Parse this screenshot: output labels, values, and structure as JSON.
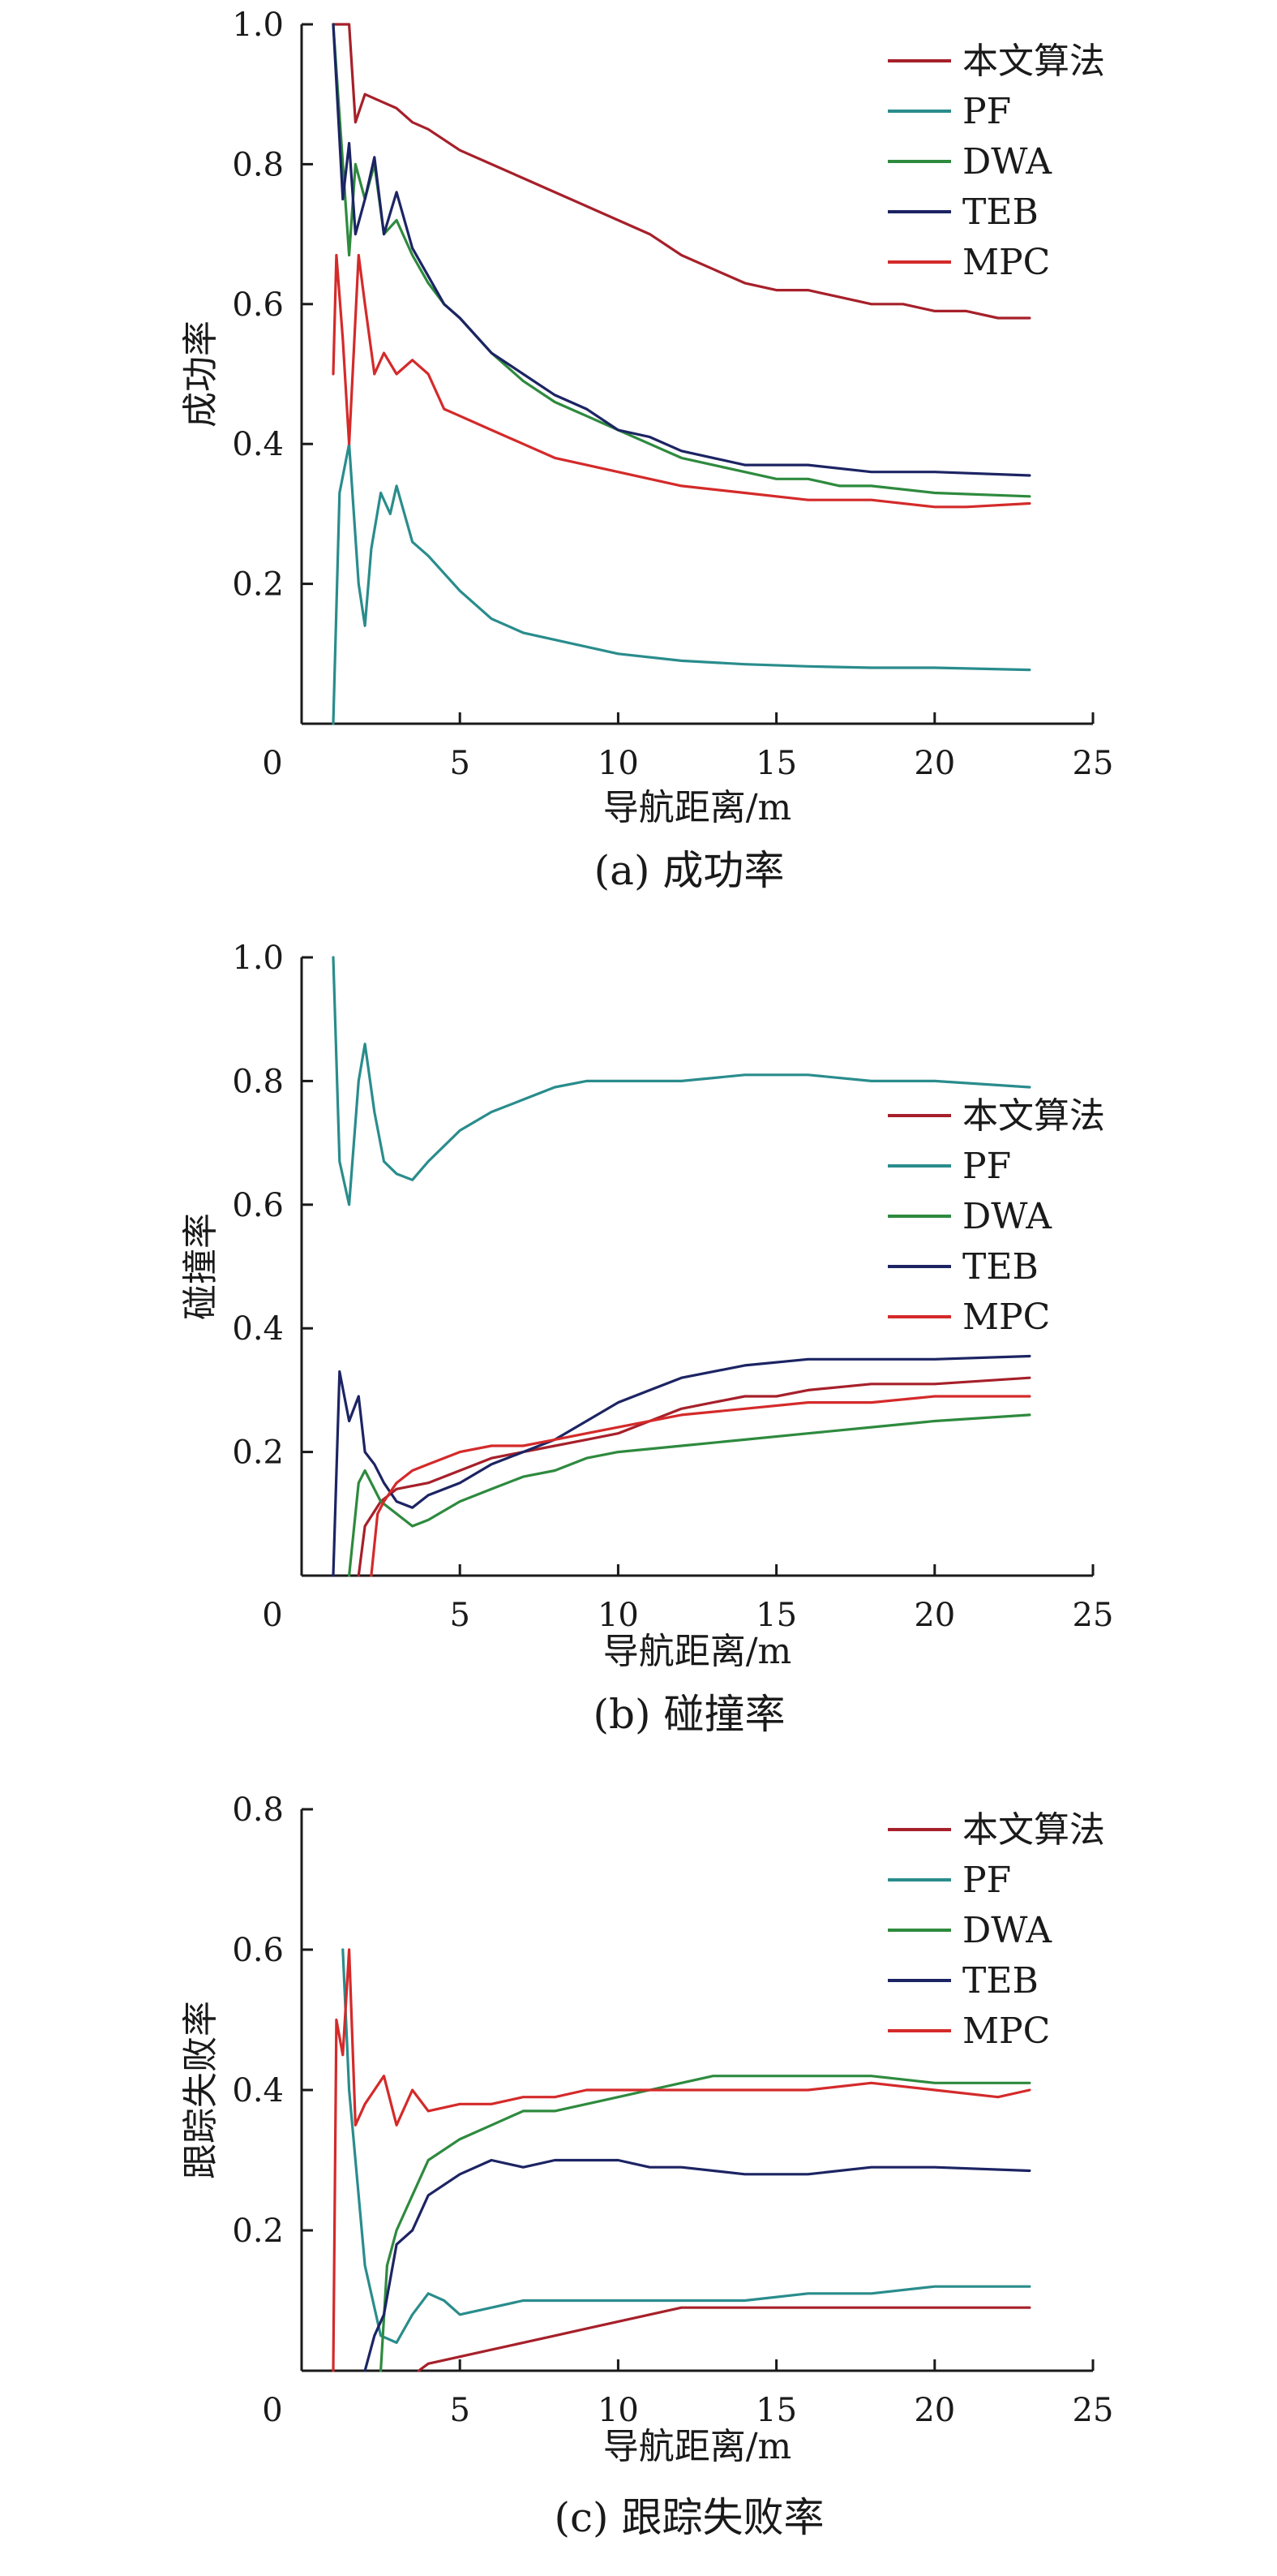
{
  "chart_data": [
    {
      "type": "line",
      "caption": "(a) 成功率",
      "xlabel": "导航距离/m",
      "ylabel": "成功率",
      "xlim": [
        0,
        25
      ],
      "ylim": [
        0,
        1.0
      ],
      "xticks": [
        0,
        5,
        10,
        15,
        20,
        25
      ],
      "yticks": [
        0.2,
        0.4,
        0.6,
        0.8,
        1.0
      ],
      "ytick_labels": [
        "0.2",
        "0.4",
        "0.6",
        "0.8",
        "1.0"
      ],
      "legend": "top-right",
      "series": [
        {
          "name": "本文算法",
          "color": "#a6202a",
          "x": [
            1.0,
            1.5,
            1.7,
            2.0,
            2.5,
            3.0,
            3.5,
            4.0,
            5.0,
            6.0,
            7.0,
            8.0,
            9.0,
            10.0,
            11.0,
            12.0,
            13.0,
            14.0,
            15.0,
            16.0,
            17.0,
            18.0,
            19.0,
            20.0,
            21.0,
            22.0,
            23.0
          ],
          "y": [
            1.0,
            1.0,
            0.86,
            0.9,
            0.89,
            0.88,
            0.86,
            0.85,
            0.82,
            0.8,
            0.78,
            0.76,
            0.74,
            0.72,
            0.7,
            0.67,
            0.65,
            0.63,
            0.62,
            0.62,
            0.61,
            0.6,
            0.6,
            0.59,
            0.59,
            0.58,
            0.58
          ]
        },
        {
          "name": "PF",
          "color": "#2a8c8c",
          "x": [
            1.0,
            1.2,
            1.5,
            1.8,
            2.0,
            2.2,
            2.5,
            2.8,
            3.0,
            3.5,
            4.0,
            5.0,
            6.0,
            7.0,
            8.0,
            9.0,
            10.0,
            12.0,
            14.0,
            16.0,
            18.0,
            20.0,
            23.0
          ],
          "y": [
            0.0,
            0.33,
            0.4,
            0.2,
            0.14,
            0.25,
            0.33,
            0.3,
            0.34,
            0.26,
            0.24,
            0.19,
            0.15,
            0.13,
            0.12,
            0.11,
            0.1,
            0.09,
            0.085,
            0.082,
            0.08,
            0.08,
            0.077
          ]
        },
        {
          "name": "DWA",
          "color": "#2e8a3e",
          "x": [
            1.0,
            1.5,
            1.7,
            2.0,
            2.3,
            2.6,
            3.0,
            3.5,
            4.0,
            4.5,
            5.0,
            6.0,
            7.0,
            8.0,
            9.0,
            10.0,
            11.0,
            12.0,
            13.0,
            14.0,
            15.0,
            16.0,
            17.0,
            18.0,
            20.0,
            23.0
          ],
          "y": [
            1.0,
            0.67,
            0.8,
            0.75,
            0.8,
            0.7,
            0.72,
            0.67,
            0.63,
            0.6,
            0.58,
            0.53,
            0.49,
            0.46,
            0.44,
            0.42,
            0.4,
            0.38,
            0.37,
            0.36,
            0.35,
            0.35,
            0.34,
            0.34,
            0.33,
            0.325
          ]
        },
        {
          "name": "TEB",
          "color": "#1c2463",
          "x": [
            1.0,
            1.3,
            1.5,
            1.7,
            2.0,
            2.3,
            2.6,
            3.0,
            3.5,
            4.0,
            4.5,
            5.0,
            6.0,
            7.0,
            8.0,
            9.0,
            10.0,
            11.0,
            12.0,
            13.0,
            14.0,
            15.0,
            16.0,
            18.0,
            20.0,
            23.0
          ],
          "y": [
            1.0,
            0.75,
            0.83,
            0.7,
            0.75,
            0.81,
            0.7,
            0.76,
            0.68,
            0.64,
            0.6,
            0.58,
            0.53,
            0.5,
            0.47,
            0.45,
            0.42,
            0.41,
            0.39,
            0.38,
            0.37,
            0.37,
            0.37,
            0.36,
            0.36,
            0.355
          ]
        },
        {
          "name": "MPC",
          "color": "#d42a2a",
          "x": [
            1.0,
            1.1,
            1.3,
            1.5,
            1.8,
            2.0,
            2.3,
            2.6,
            3.0,
            3.5,
            4.0,
            4.5,
            5.0,
            6.0,
            7.0,
            8.0,
            9.0,
            10.0,
            11.0,
            12.0,
            14.0,
            16.0,
            18.0,
            20.0,
            21.0,
            23.0
          ],
          "y": [
            0.5,
            0.67,
            0.55,
            0.4,
            0.67,
            0.6,
            0.5,
            0.53,
            0.5,
            0.52,
            0.5,
            0.45,
            0.44,
            0.42,
            0.4,
            0.38,
            0.37,
            0.36,
            0.35,
            0.34,
            0.33,
            0.32,
            0.32,
            0.31,
            0.31,
            0.315
          ]
        }
      ]
    },
    {
      "type": "line",
      "caption": "(b) 碰撞率",
      "xlabel": "导航距离/m",
      "ylabel": "碰撞率",
      "xlim": [
        0,
        25
      ],
      "ylim": [
        0,
        1.0
      ],
      "xticks": [
        0,
        5,
        10,
        15,
        20,
        25
      ],
      "yticks": [
        0.2,
        0.4,
        0.6,
        0.8,
        1.0
      ],
      "ytick_labels": [
        "0.2",
        "0.4",
        "0.6",
        "0.8",
        "1.0"
      ],
      "legend": "right",
      "series": [
        {
          "name": "本文算法",
          "color": "#a6202a",
          "x": [
            1.8,
            2.0,
            2.5,
            3.0,
            4.0,
            5.0,
            6.0,
            7.0,
            8.0,
            9.0,
            10.0,
            11.0,
            12.0,
            13.0,
            14.0,
            15.0,
            16.0,
            18.0,
            20.0,
            23.0
          ],
          "y": [
            0.0,
            0.08,
            0.12,
            0.14,
            0.15,
            0.17,
            0.19,
            0.2,
            0.21,
            0.22,
            0.23,
            0.25,
            0.27,
            0.28,
            0.29,
            0.29,
            0.3,
            0.31,
            0.31,
            0.32
          ]
        },
        {
          "name": "PF",
          "color": "#2a8c8c",
          "x": [
            1.0,
            1.2,
            1.5,
            1.8,
            2.0,
            2.3,
            2.6,
            3.0,
            3.5,
            4.0,
            5.0,
            6.0,
            7.0,
            8.0,
            9.0,
            10.0,
            12.0,
            14.0,
            16.0,
            18.0,
            20.0,
            23.0
          ],
          "y": [
            1.0,
            0.67,
            0.6,
            0.8,
            0.86,
            0.75,
            0.67,
            0.65,
            0.64,
            0.67,
            0.72,
            0.75,
            0.77,
            0.79,
            0.8,
            0.8,
            0.8,
            0.81,
            0.81,
            0.8,
            0.8,
            0.79
          ]
        },
        {
          "name": "DWA",
          "color": "#2e8a3e",
          "x": [
            1.5,
            1.8,
            2.0,
            2.5,
            3.0,
            3.5,
            4.0,
            5.0,
            6.0,
            7.0,
            8.0,
            9.0,
            10.0,
            12.0,
            14.0,
            16.0,
            18.0,
            20.0,
            23.0
          ],
          "y": [
            0.0,
            0.15,
            0.17,
            0.12,
            0.1,
            0.08,
            0.09,
            0.12,
            0.14,
            0.16,
            0.17,
            0.19,
            0.2,
            0.21,
            0.22,
            0.23,
            0.24,
            0.25,
            0.26
          ]
        },
        {
          "name": "TEB",
          "color": "#1c2463",
          "x": [
            1.0,
            1.2,
            1.5,
            1.8,
            2.0,
            2.3,
            2.6,
            3.0,
            3.5,
            4.0,
            5.0,
            6.0,
            7.0,
            8.0,
            9.0,
            10.0,
            11.0,
            12.0,
            14.0,
            16.0,
            18.0,
            20.0,
            23.0
          ],
          "y": [
            0.0,
            0.33,
            0.25,
            0.29,
            0.2,
            0.18,
            0.15,
            0.12,
            0.11,
            0.13,
            0.15,
            0.18,
            0.2,
            0.22,
            0.25,
            0.28,
            0.3,
            0.32,
            0.34,
            0.35,
            0.35,
            0.35,
            0.355
          ]
        },
        {
          "name": "MPC",
          "color": "#d42a2a",
          "x": [
            2.2,
            2.4,
            2.6,
            3.0,
            3.5,
            4.0,
            5.0,
            6.0,
            7.0,
            8.0,
            9.0,
            10.0,
            12.0,
            14.0,
            16.0,
            18.0,
            20.0,
            23.0
          ],
          "y": [
            0.0,
            0.1,
            0.12,
            0.15,
            0.17,
            0.18,
            0.2,
            0.21,
            0.21,
            0.22,
            0.23,
            0.24,
            0.26,
            0.27,
            0.28,
            0.28,
            0.29,
            0.29
          ]
        }
      ]
    },
    {
      "type": "line",
      "caption": "(c) 跟踪失败率",
      "xlabel": "导航距离/m",
      "ylabel": "跟踪失败率",
      "xlim": [
        0,
        25
      ],
      "ylim": [
        0,
        0.8
      ],
      "xticks": [
        0,
        5,
        10,
        15,
        20,
        25
      ],
      "yticks": [
        0.2,
        0.4,
        0.6,
        0.8
      ],
      "ytick_labels": [
        "0.2",
        "0.4",
        "0.6",
        "0.8"
      ],
      "legend": "top-right",
      "series": [
        {
          "name": "本文算法",
          "color": "#a6202a",
          "x": [
            3.7,
            4.0,
            5.0,
            6.0,
            7.0,
            8.0,
            9.0,
            10.0,
            11.0,
            12.0,
            13.0,
            14.0,
            15.0,
            16.0,
            18.0,
            20.0,
            23.0
          ],
          "y": [
            0.0,
            0.01,
            0.02,
            0.03,
            0.04,
            0.05,
            0.06,
            0.07,
            0.08,
            0.09,
            0.09,
            0.09,
            0.09,
            0.09,
            0.09,
            0.09,
            0.09
          ]
        },
        {
          "name": "PF",
          "color": "#2a8c8c",
          "x": [
            1.3,
            1.5,
            2.0,
            2.5,
            3.0,
            3.5,
            4.0,
            4.5,
            5.0,
            6.0,
            7.0,
            8.0,
            9.0,
            10.0,
            12.0,
            14.0,
            16.0,
            18.0,
            20.0,
            23.0
          ],
          "y": [
            0.6,
            0.4,
            0.15,
            0.05,
            0.04,
            0.08,
            0.11,
            0.1,
            0.08,
            0.09,
            0.1,
            0.1,
            0.1,
            0.1,
            0.1,
            0.1,
            0.11,
            0.11,
            0.12,
            0.12
          ]
        },
        {
          "name": "DWA",
          "color": "#2e8a3e",
          "x": [
            2.5,
            2.7,
            3.0,
            3.5,
            4.0,
            5.0,
            6.0,
            7.0,
            8.0,
            9.0,
            10.0,
            11.0,
            12.0,
            13.0,
            14.0,
            16.0,
            18.0,
            20.0,
            23.0
          ],
          "y": [
            0.0,
            0.15,
            0.2,
            0.25,
            0.3,
            0.33,
            0.35,
            0.37,
            0.37,
            0.38,
            0.39,
            0.4,
            0.41,
            0.42,
            0.42,
            0.42,
            0.42,
            0.41,
            0.41
          ]
        },
        {
          "name": "TEB",
          "color": "#1c2463",
          "x": [
            2.0,
            2.3,
            2.6,
            3.0,
            3.5,
            4.0,
            5.0,
            6.0,
            7.0,
            8.0,
            9.0,
            10.0,
            11.0,
            12.0,
            14.0,
            16.0,
            18.0,
            20.0,
            23.0
          ],
          "y": [
            0.0,
            0.05,
            0.08,
            0.18,
            0.2,
            0.25,
            0.28,
            0.3,
            0.29,
            0.3,
            0.3,
            0.3,
            0.29,
            0.29,
            0.28,
            0.28,
            0.29,
            0.29,
            0.285
          ]
        },
        {
          "name": "MPC",
          "color": "#d42a2a",
          "x": [
            1.0,
            1.1,
            1.3,
            1.5,
            1.7,
            2.0,
            2.3,
            2.6,
            3.0,
            3.5,
            4.0,
            5.0,
            6.0,
            7.0,
            8.0,
            9.0,
            10.0,
            12.0,
            14.0,
            16.0,
            18.0,
            20.0,
            22.0,
            23.0
          ],
          "y": [
            0.0,
            0.5,
            0.45,
            0.6,
            0.35,
            0.38,
            0.4,
            0.42,
            0.35,
            0.4,
            0.37,
            0.38,
            0.38,
            0.39,
            0.39,
            0.4,
            0.4,
            0.4,
            0.4,
            0.4,
            0.41,
            0.4,
            0.39,
            0.4
          ]
        }
      ]
    }
  ]
}
